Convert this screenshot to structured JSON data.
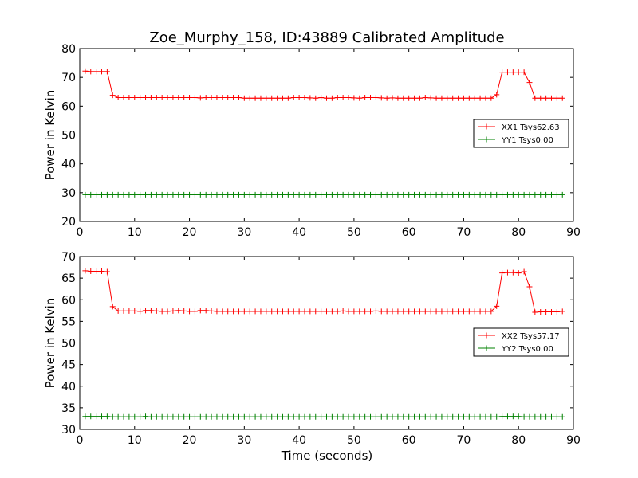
{
  "title": "Zoe_Murphy_158, ID:43889 Calibrated Amplitude",
  "xlabel": "Time (seconds)",
  "chart_data": [
    {
      "type": "line",
      "title": "Zoe_Murphy_158, ID:43889 Calibrated Amplitude",
      "xlabel": "",
      "ylabel": "Power in Kelvin",
      "xlim": [
        0,
        90
      ],
      "ylim": [
        20,
        80
      ],
      "xticks": [
        "0",
        "10",
        "20",
        "30",
        "40",
        "50",
        "60",
        "70",
        "80",
        "90"
      ],
      "yticks": [
        "20",
        "30",
        "40",
        "50",
        "60",
        "70",
        "80"
      ],
      "grid": false,
      "legend_position": "right",
      "x": [
        1,
        2,
        3,
        4,
        5,
        6,
        7,
        8,
        9,
        10,
        11,
        12,
        13,
        14,
        15,
        16,
        17,
        18,
        19,
        20,
        21,
        22,
        23,
        24,
        25,
        26,
        27,
        28,
        29,
        30,
        31,
        32,
        33,
        34,
        35,
        36,
        37,
        38,
        39,
        40,
        41,
        42,
        43,
        44,
        45,
        46,
        47,
        48,
        49,
        50,
        51,
        52,
        53,
        54,
        55,
        56,
        57,
        58,
        59,
        60,
        61,
        62,
        63,
        64,
        65,
        66,
        67,
        68,
        69,
        70,
        71,
        72,
        73,
        74,
        75,
        76,
        77,
        78,
        79,
        80,
        81,
        82,
        83,
        84,
        85,
        86,
        87,
        88
      ],
      "series": [
        {
          "name": "XX1 Tsys62.63",
          "color": "#ff0000",
          "values": [
            72.2,
            72.0,
            72.0,
            72.0,
            72.0,
            63.8,
            63.0,
            63.0,
            63.0,
            63.0,
            63.0,
            63.0,
            63.0,
            63.0,
            63.0,
            63.0,
            63.0,
            63.0,
            63.0,
            63.0,
            63.0,
            62.9,
            63.0,
            63.0,
            63.0,
            63.0,
            63.0,
            63.0,
            63.0,
            62.8,
            62.8,
            62.8,
            62.8,
            62.8,
            62.8,
            62.8,
            62.8,
            62.8,
            63.0,
            63.0,
            63.0,
            62.9,
            62.8,
            63.0,
            62.8,
            62.8,
            63.0,
            63.0,
            63.0,
            62.9,
            62.8,
            63.0,
            63.0,
            63.0,
            62.9,
            62.8,
            62.9,
            62.8,
            62.8,
            62.8,
            62.8,
            62.8,
            63.0,
            62.9,
            62.8,
            62.8,
            62.8,
            62.8,
            62.8,
            62.8,
            62.8,
            62.8,
            62.8,
            62.8,
            62.8,
            64.0,
            71.8,
            71.8,
            71.8,
            71.8,
            71.8,
            68.2,
            62.8,
            62.8,
            62.8,
            62.8,
            62.8,
            62.8
          ]
        },
        {
          "name": "YY1 Tsys0.00",
          "color": "#008000",
          "values": [
            29.3,
            29.3,
            29.3,
            29.3,
            29.3,
            29.3,
            29.3,
            29.3,
            29.3,
            29.3,
            29.3,
            29.3,
            29.3,
            29.3,
            29.3,
            29.3,
            29.3,
            29.3,
            29.3,
            29.3,
            29.3,
            29.3,
            29.3,
            29.3,
            29.3,
            29.3,
            29.3,
            29.3,
            29.3,
            29.3,
            29.3,
            29.3,
            29.3,
            29.3,
            29.3,
            29.3,
            29.3,
            29.3,
            29.3,
            29.3,
            29.3,
            29.3,
            29.3,
            29.3,
            29.3,
            29.3,
            29.3,
            29.3,
            29.3,
            29.3,
            29.3,
            29.3,
            29.3,
            29.3,
            29.3,
            29.3,
            29.3,
            29.3,
            29.3,
            29.3,
            29.3,
            29.3,
            29.3,
            29.3,
            29.3,
            29.3,
            29.3,
            29.3,
            29.3,
            29.3,
            29.3,
            29.3,
            29.3,
            29.3,
            29.3,
            29.3,
            29.3,
            29.3,
            29.3,
            29.3,
            29.3,
            29.3,
            29.3,
            29.3,
            29.3,
            29.3,
            29.3,
            29.3
          ]
        }
      ]
    },
    {
      "type": "line",
      "title": "",
      "xlabel": "Time (seconds)",
      "ylabel": "Power in Kelvin",
      "xlim": [
        0,
        90
      ],
      "ylim": [
        30,
        70
      ],
      "xticks": [
        "0",
        "10",
        "20",
        "30",
        "40",
        "50",
        "60",
        "70",
        "80",
        "90"
      ],
      "yticks": [
        "30",
        "35",
        "40",
        "45",
        "50",
        "55",
        "60",
        "65",
        "70"
      ],
      "grid": false,
      "legend_position": "right",
      "x": [
        1,
        2,
        3,
        4,
        5,
        6,
        7,
        8,
        9,
        10,
        11,
        12,
        13,
        14,
        15,
        16,
        17,
        18,
        19,
        20,
        21,
        22,
        23,
        24,
        25,
        26,
        27,
        28,
        29,
        30,
        31,
        32,
        33,
        34,
        35,
        36,
        37,
        38,
        39,
        40,
        41,
        42,
        43,
        44,
        45,
        46,
        47,
        48,
        49,
        50,
        51,
        52,
        53,
        54,
        55,
        56,
        57,
        58,
        59,
        60,
        61,
        62,
        63,
        64,
        65,
        66,
        67,
        68,
        69,
        70,
        71,
        72,
        73,
        74,
        75,
        76,
        77,
        78,
        79,
        80,
        81,
        82,
        83,
        84,
        85,
        86,
        87,
        88
      ],
      "series": [
        {
          "name": "XX2 Tsys57.17",
          "color": "#ff0000",
          "values": [
            66.7,
            66.6,
            66.6,
            66.6,
            66.5,
            58.4,
            57.4,
            57.4,
            57.4,
            57.4,
            57.3,
            57.5,
            57.5,
            57.4,
            57.3,
            57.3,
            57.4,
            57.5,
            57.4,
            57.3,
            57.3,
            57.5,
            57.5,
            57.4,
            57.3,
            57.3,
            57.3,
            57.3,
            57.3,
            57.3,
            57.3,
            57.3,
            57.3,
            57.3,
            57.3,
            57.3,
            57.3,
            57.3,
            57.3,
            57.3,
            57.3,
            57.3,
            57.3,
            57.3,
            57.3,
            57.3,
            57.3,
            57.4,
            57.3,
            57.3,
            57.3,
            57.3,
            57.3,
            57.4,
            57.3,
            57.3,
            57.3,
            57.3,
            57.3,
            57.3,
            57.3,
            57.3,
            57.3,
            57.3,
            57.3,
            57.3,
            57.3,
            57.3,
            57.3,
            57.3,
            57.3,
            57.3,
            57.3,
            57.3,
            57.3,
            58.5,
            66.2,
            66.3,
            66.3,
            66.2,
            66.5,
            63.0,
            57.1,
            57.2,
            57.2,
            57.2,
            57.2,
            57.3
          ]
        },
        {
          "name": "YY2 Tsys0.00",
          "color": "#008000",
          "values": [
            33.0,
            33.0,
            33.0,
            33.0,
            33.0,
            32.9,
            32.9,
            32.9,
            32.9,
            32.9,
            32.9,
            33.0,
            32.9,
            32.9,
            32.9,
            32.9,
            32.9,
            32.9,
            32.9,
            32.9,
            32.9,
            32.9,
            32.9,
            32.9,
            32.9,
            32.9,
            32.9,
            32.9,
            32.9,
            32.9,
            32.9,
            32.9,
            32.9,
            32.9,
            32.9,
            32.9,
            32.9,
            32.9,
            32.9,
            32.9,
            32.9,
            32.9,
            32.9,
            32.9,
            32.9,
            32.9,
            32.9,
            32.9,
            32.9,
            32.9,
            32.9,
            32.9,
            32.9,
            32.9,
            32.9,
            32.9,
            32.9,
            32.9,
            32.9,
            32.9,
            32.9,
            32.9,
            32.9,
            32.9,
            32.9,
            32.9,
            32.9,
            32.9,
            32.9,
            32.9,
            32.9,
            32.9,
            32.9,
            32.9,
            32.9,
            32.9,
            33.0,
            33.0,
            33.0,
            33.0,
            32.9,
            32.9,
            32.9,
            32.9,
            32.9,
            32.9,
            32.9,
            32.9
          ]
        }
      ]
    }
  ]
}
